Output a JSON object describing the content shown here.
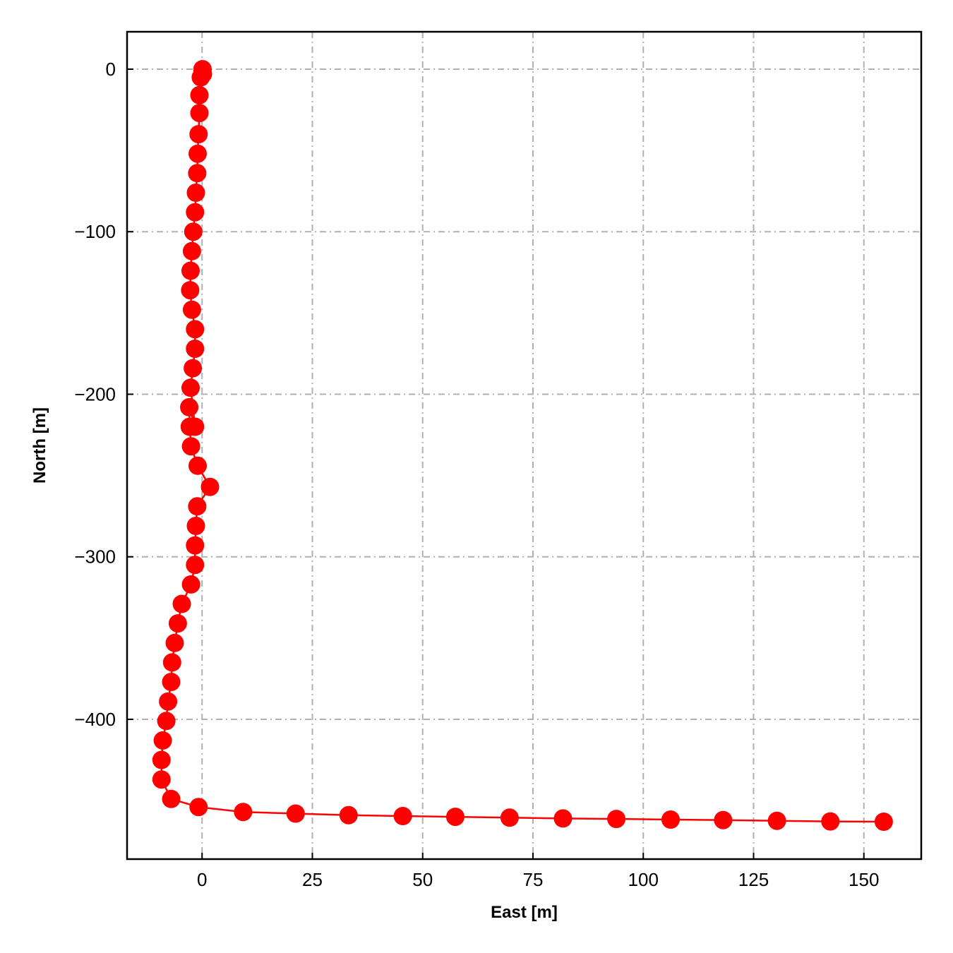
{
  "chart_data": {
    "type": "line",
    "title": "",
    "xlabel": "East [m]",
    "ylabel": "North [m]",
    "xlim": [
      -17,
      163
    ],
    "ylim": [
      -486,
      23
    ],
    "xticks": [
      0,
      25,
      50,
      75,
      100,
      125,
      150
    ],
    "yticks": [
      0,
      -100,
      -200,
      -300,
      -400
    ],
    "xtick_labels": [
      "0",
      "25",
      "50",
      "75",
      "100",
      "125",
      "150"
    ],
    "ytick_labels": [
      "0",
      "−100",
      "−200",
      "−300",
      "−400"
    ],
    "grid": true,
    "grid_style": "dash-dot",
    "series": [
      {
        "color": "#ff0000",
        "marker": "circle",
        "x": [
          0.1,
          0.1,
          0.2,
          -0.3,
          -0.6,
          -0.6,
          -0.8,
          -1.0,
          -1.1,
          -1.4,
          -1.6,
          -2.0,
          -2.3,
          -2.6,
          -2.7,
          -2.3,
          -1.6,
          -1.6,
          -2.1,
          -2.6,
          -1.6,
          -2.9,
          -2.8,
          -2.5,
          -1.0,
          1.8,
          -1.1,
          -1.4,
          -1.6,
          -1.6,
          -2.5,
          -4.6,
          -5.5,
          -6.2,
          -6.8,
          -7.0,
          -7.7,
          -8.1,
          -8.9,
          -9.2,
          -9.2,
          -7.0,
          -0.8,
          9.3,
          21.2,
          33.2,
          45.5,
          57.4,
          69.7,
          81.8,
          93.9,
          106.2,
          118.1,
          130.3,
          142.4,
          154.5
        ],
        "y": [
          0.0,
          -1.0,
          -3.0,
          -5.0,
          -16.0,
          -27.0,
          -40.0,
          -52.0,
          -64.0,
          -76.0,
          -88.0,
          -100.0,
          -112.0,
          -124.0,
          -136.0,
          -148.0,
          -160.0,
          -172.0,
          -184.0,
          -196.0,
          -220.0,
          -208.0,
          -220.0,
          -232.0,
          -244.0,
          -257.0,
          -269.0,
          -281.0,
          -293.0,
          -305.0,
          -317.0,
          -329.0,
          -341.0,
          -353.0,
          -365.0,
          -377.0,
          -389.0,
          -401.0,
          -413.0,
          -425.0,
          -437.0,
          -449.0,
          -454.0,
          -457.0,
          -458.0,
          -459.0,
          -459.5,
          -460.0,
          -460.5,
          -461.0,
          -461.3,
          -461.7,
          -462.0,
          -462.4,
          -462.8,
          -463.0
        ]
      }
    ]
  }
}
